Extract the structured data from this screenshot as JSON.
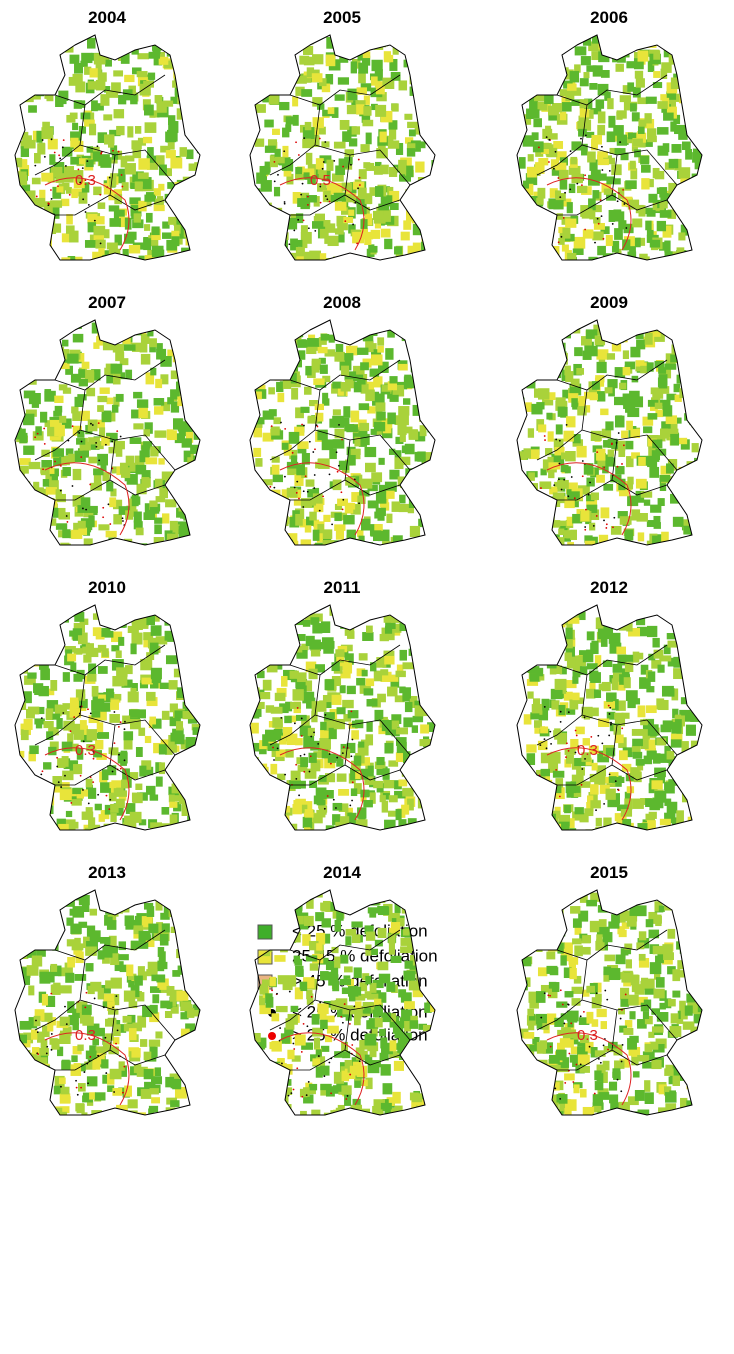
{
  "panels": [
    {
      "title": "2004",
      "contour_label": "0.3"
    },
    {
      "title": "2005",
      "contour_label": "0.5"
    },
    {
      "title": "2006"
    },
    {
      "title": "2007"
    },
    {
      "title": "2008"
    },
    {
      "title": "2009"
    },
    {
      "title": "2010",
      "contour_label": "0.3"
    },
    {
      "title": "2011"
    },
    {
      "title": "2012",
      "contour_label": "0.3"
    },
    {
      "title": "2013",
      "contour_label": "0.3"
    },
    {
      "title": "2014"
    },
    {
      "title": "2015",
      "contour_label": "0.3"
    }
  ],
  "legend": {
    "squares": [
      "< 25 % defoliation",
      "25-45 % defoliation",
      "> 45 % defoliation"
    ],
    "points": [
      "< 25 % defoliation",
      "> 25 % defoliation"
    ]
  }
}
